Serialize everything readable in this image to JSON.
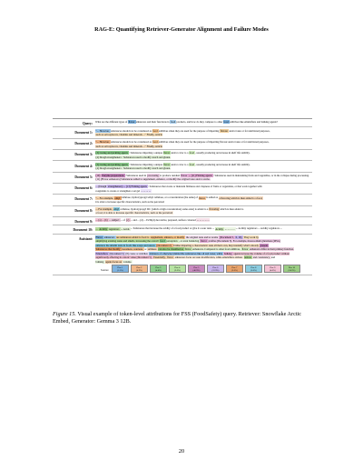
{
  "header": {
    "title": "RAG-E: Quantifying Retriever-Generator Alignment and Failure Modes"
  },
  "figure": {
    "rows": [
      {
        "label": "Query:",
        "lines": [
          [
            {
              "t": "What are the different types of",
              "c": ""
            },
            {
              "t": "flavor",
              "c": "#7fb3e0"
            },
            {
              "t": "enhancers and their functions in",
              "c": ""
            },
            {
              "t": "food",
              "c": "#a9cfee"
            },
            {
              "t": "products, and how do they compare to other",
              "c": ""
            },
            {
              "t": "food",
              "c": "#7fb3e0"
            },
            {
              "t": "additives like emulsifiers and bulking agents?",
              "c": ""
            }
          ]
        ]
      },
      {
        "label": "Document 1:",
        "lines": [
          [
            {
              "t": "\"... However,",
              "c": "#9ec9ee"
            },
            {
              "t": "substances should not be considered as",
              "c": ""
            },
            {
              "t": "food",
              "c": "#f6c48c"
            },
            {
              "t": "additives when they are used for the purpose of imparting",
              "c": ""
            },
            {
              "t": "flavour",
              "c": "#f3d29f"
            },
            {
              "t": "and/or taste or for nutritional purposes,",
              "c": ""
            }
          ],
          [
            {
              "t": "such as salt replacers, vitamins and minerals ...\" Finally, Article",
              "c": "#f8e2c0"
            }
          ]
        ]
      },
      {
        "label": "Document 2:",
        "lines": [
          [
            {
              "t": "\"... However,",
              "c": "#f1b88a"
            },
            {
              "t": "substances should not be considered as",
              "c": ""
            },
            {
              "t": "food",
              "c": "#f5c896"
            },
            {
              "t": "additives when they are used for the purpose of imparting flavour and/or taste or for nutritional purposes,",
              "c": ""
            }
          ],
          [
            {
              "t": "such as salt replacers, vitamins and minerals ...\" Finally, Article",
              "c": "#f7e0c4"
            }
          ]
        ]
      },
      {
        "label": "Document 3:",
        "lines": [
          [
            {
              "t": "(3) Curing and pickling agents",
              "c": "#8fcf8f"
            },
            {
              "t": ": Substances imparting a unique",
              "c": ""
            },
            {
              "t": "flavor",
              "c": "#b7e3a3"
            },
            {
              "t": "and/or color to a",
              "c": ""
            },
            {
              "t": "food",
              "c": "#d6f0c4"
            },
            {
              "t": ", usually producing an increase in shelf life stability.",
              "c": ""
            }
          ],
          [
            {
              "t": "(4) Dough strengtheners : Substances used to modify starch and gluten.",
              "c": "#e4f3da"
            }
          ]
        ]
      },
      {
        "label": "Document 4:",
        "lines": [
          [
            {
              "t": "(3) Curing and pickling agents",
              "c": "#8fcf8f"
            },
            {
              "t": ": Substances imparting a unique",
              "c": ""
            },
            {
              "t": "flavor",
              "c": "#c4e8b3"
            },
            {
              "t": "and/or color to a",
              "c": ""
            },
            {
              "t": "food",
              "c": "#d9f1c8"
            },
            {
              "t": ", usually producing an increase in shelf life stability.",
              "c": ""
            }
          ],
          [
            {
              "t": "(4) Dough strengtheners : Substances used to modify starch and gluten.",
              "c": "#eaf6e2"
            }
          ]
        ]
      },
      {
        "label": "Document 5:",
        "lines": [
          [
            {
              "t": "(10)",
              "c": "#e7b4d9"
            },
            {
              "t": "Enzyme preparations",
              "c": "#c98bc0"
            },
            {
              "t": ": Substances used in",
              "c": ""
            },
            {
              "t": "processing",
              "c": "#f0d0e8"
            },
            {
              "t": "to produce residual",
              "c": ""
            },
            {
              "t": "flavor",
              "c": "#e6b5dc"
            },
            {
              "t": "... (11) Firming agents",
              "c": "#e2a9d3"
            },
            {
              "t": ": Substances used in maintaining fruits and vegetables, or in the collapse during processing.",
              "c": ""
            }
          ],
          [
            {
              "t": "(11) (Flavor enhancers) Substances added to supplement, enhance, or modify the original taste and/or aroma.",
              "c": "#f4e0ef"
            }
          ]
        ]
      },
      {
        "label": "Document 6:",
        "lines": [
          [
            {
              "t": "... (Dough",
              "c": "#d9ccf2"
            },
            {
              "t": "strengtheners) ... (13) Firming agents",
              "c": "#c9b7ee"
            },
            {
              "t": ": Substances that create or maintain firmness and crispness of fruits or vegetables, or that work together with",
              "c": ""
            }
          ],
          [
            {
              "t": "coagulants to create or strengthen a set gel",
              "c": ""
            },
            {
              "t": "... ... ... ...",
              "c": "#ece4fa"
            }
          ]
        ]
      },
      {
        "label": "Document 7:",
        "lines": [
          [
            {
              "t": "\"... For example,",
              "c": "#f4d3b0"
            },
            {
              "t": "ethyl",
              "c": "#e8a36c"
            },
            {
              "t": "cellulose, hydroxypropyl ethyl cellulose, at a concentration (the same) of",
              "c": ""
            },
            {
              "t": "flavor",
              "c": "#f3c59b"
            },
            {
              "t": "is added as",
              "c": ""
            },
            {
              "t": "a flavoring which is then added to a food,",
              "c": "#f7dcc2"
            }
          ],
          [
            {
              "t": "it is able to increase specific characteristics, such as the perceived",
              "c": ""
            }
          ]
        ]
      },
      {
        "label": "Document 8:",
        "lines": [
          [
            {
              "t": "... For example,",
              "c": "#f2d6b6"
            },
            {
              "t": "ethyl",
              "c": "#8ccce0"
            },
            {
              "t": "cellulose, hydroxypropyl DC (which a high concentration) some ester) is added to a",
              "c": ""
            },
            {
              "t": "flavoring",
              "c": "#f4d7b8"
            },
            {
              "t": "which is then added to",
              "c": ""
            }
          ],
          [
            {
              "t": "a food, it is able to increase specific characteristics, such as the perceived",
              "c": "#fbeee0"
            }
          ]
        ]
      },
      {
        "label": "Document 9:",
        "lines": [
          [
            {
              "t": "... (a) ... (b)",
              "c": "#f3c4d6"
            },
            {
              "t": "... subject",
              "c": "#ecd1e0"
            },
            {
              "t": "... of",
              "c": ""
            },
            {
              "t": "(c)",
              "c": "#f0cad9"
            },
            {
              "t": "... and ... (d) ... E234(d) decorative, prepared, surface coloured",
              "c": ""
            },
            {
              "t": "... ... ... ... ...",
              "c": "#f6e2ea"
            }
          ]
        ]
      },
      {
        "label": "Document 10:",
        "lines": [
          [
            {
              "t": "...",
              "c": "#b5d99a"
            },
            {
              "t": "Acidity",
              "c": "#9bcd84"
            },
            {
              "t": "regulators",
              "c": "#c3e2ad"
            },
            {
              "t": "... Acids",
              "c": "#e3f1d7"
            },
            {
              "t": "... Substances that increase the acidity of a food product or give it a sour taste ...",
              "c": ""
            },
            {
              "t": "Acidity",
              "c": "#d1e9bf"
            },
            {
              "t": "... ... ... ...",
              "c": "#ecf6e4"
            },
            {
              "t": "... Acidity regulators ... Acidity regulators ...",
              "c": ""
            }
          ]
        ]
      },
      {
        "label": "Assistant:",
        "lines": [
          [
            {
              "t": "Flavor",
              "c": "#7fb3e0"
            },
            {
              "t": "enhancers",
              "c": "#a9cfee"
            },
            {
              "t": "are substances added to food to",
              "c": "#f3d29f"
            },
            {
              "t": "supplement, enhance, or modify",
              "c": "#f6c48c"
            },
            {
              "t": "the original taste and/or aroma",
              "c": "#f4e0ef"
            },
            {
              "t": "[Document 5,",
              "c": "#e6b5dc"
            },
            {
              "t": "6, 10].",
              "c": "#c9b7ee"
            },
            {
              "t": "They work by",
              "c": "#f8e2c0"
            }
          ],
          [
            {
              "t": "amplifying existing tastes and smells, increasing the overall",
              "c": "#b7e3a3"
            },
            {
              "t": "food",
              "c": "#8fcf8f"
            },
            {
              "t": "perception",
              "c": "#d6f0c4"
            },
            {
              "t": ", or even balancing",
              "c": "#e4f3da"
            },
            {
              "t": "flavor",
              "c": "#e2a9d3"
            },
            {
              "t": "profiles [Document 5]. For example, monosodium glutamate (MSG)",
              "c": "#f0d0e8"
            }
          ],
          [
            {
              "t": "enhances the umami taste in foods like soups and sauces",
              "c": "#8ccce0"
            },
            {
              "t": "[Document 2].",
              "c": "#f1b88a"
            },
            {
              "t": "Unlike imparting a characteristic taste all their own, they intensify what's already",
              "c": "#f7e0c4"
            },
            {
              "t": "present.",
              "c": "#c98bc0"
            }
          ],
          [
            {
              "t": "Substances that modify",
              "c": "#e8a36c"
            },
            {
              "t": "sweetness, sourness,",
              "c": "#f3c59b"
            },
            {
              "t": "or",
              "c": ""
            },
            {
              "t": "saltiness",
              "c": "#f7dcc2"
            },
            {
              "t": "can also be classified as",
              "c": "#9bcd84"
            },
            {
              "t": "flavor",
              "c": "#c3e2ad"
            },
            {
              "t": "enhancers. Compared to other food additives,",
              "c": "#e3f1d7"
            },
            {
              "t": "flavor",
              "c": "#d1e9bf"
            },
            {
              "t": "enhancers differ in their primary function.",
              "c": "#ecd1e0"
            }
          ],
          [
            {
              "t": "Emulsifiers",
              "c": "#c9b7ee"
            },
            {
              "t": "[Document 5]",
              "c": "#d9ccf2"
            },
            {
              "t": "(8) create or stabilize",
              "c": "#ece4fa"
            },
            {
              "t": "mixtures of otherwise immiscible substances like oil and water, while",
              "c": "#9ec9ee"
            },
            {
              "t": "bulking",
              "c": "#e7b4d9"
            },
            {
              "t": "agents increase the volume of a food product without",
              "c": "#f0cad9"
            }
          ],
          [
            {
              "t": "significantly affecting its caloric value [Document 5].",
              "c": "#f3c4d6"
            },
            {
              "t": "Essentially,",
              "c": "#f2d6b6"
            },
            {
              "t": "flavor",
              "c": "#f4d7b8"
            },
            {
              "t": "enhancers focus on taste modification, while emulsifiers address",
              "c": "#fbeee0"
            },
            {
              "t": "texture",
              "c": "#b5d99a"
            },
            {
              "t": "and consistency,",
              "c": "#f6e2ea"
            },
            {
              "t": "and",
              "c": ""
            }
          ],
          [
            {
              "t": "bulking",
              "c": "#eaf6e2"
            },
            {
              "t": "agents focus on",
              "c": "#f4d3b0"
            },
            {
              "t": "volume.",
              "c": "#ecf6e4"
            }
          ]
        ],
        "legend_label": "Sources:",
        "legend": [
          {
            "l1": "Doc 1",
            "l2": "(1.5%)",
            "c": "#7fb3e0"
          },
          {
            "l1": "Doc 2",
            "l2": "(0.9%)",
            "c": "#f1b88a"
          },
          {
            "l1": "Doc 3",
            "l2": "(4.4%)",
            "c": "#8fcf8f"
          },
          {
            "l1": "Doc 4",
            "l2": "(2.6%)",
            "c": "#b7e3a3"
          },
          {
            "l1": "Doc 5",
            "l2": "(40.9%)",
            "c": "#c98bc0"
          },
          {
            "l1": "Doc 6",
            "l2": "(12.9%)",
            "c": "#c9b7ee"
          },
          {
            "l1": "Doc 7",
            "l2": "(3.6%)",
            "c": "#e8a36c"
          },
          {
            "l1": "Doc 8",
            "l2": "(5.0%)",
            "c": "#8ccce0"
          },
          {
            "l1": "Doc 9",
            "l2": "(4.0%)",
            "c": "#f3c4d6"
          },
          {
            "l1": "Doc 10",
            "l2": "(24.2%)",
            "c": "#9bcd84"
          }
        ]
      }
    ]
  },
  "caption": {
    "fig_label": "Figure 15.",
    "text": "Visual example of token-level attributions for FSS (FoodSafety) query. Retriever: Snowflake Arctic Embed, Generator: Gemma 3 12B."
  },
  "page": {
    "number": "20"
  }
}
